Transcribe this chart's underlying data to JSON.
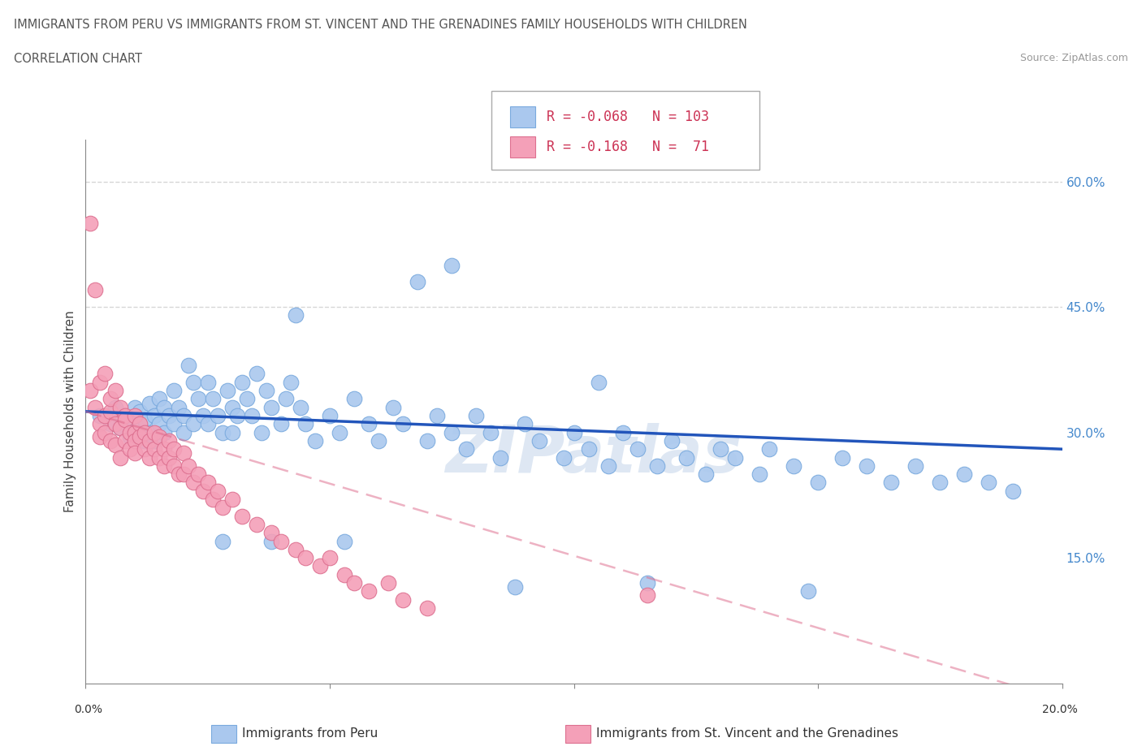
{
  "title_line1": "IMMIGRANTS FROM PERU VS IMMIGRANTS FROM ST. VINCENT AND THE GRENADINES FAMILY HOUSEHOLDS WITH CHILDREN",
  "title_line2": "CORRELATION CHART",
  "source": "Source: ZipAtlas.com",
  "ylabel": "Family Households with Children",
  "xlim": [
    0.0,
    20.0
  ],
  "ylim": [
    0.0,
    65.0
  ],
  "yticks_right": [
    15.0,
    30.0,
    45.0,
    60.0
  ],
  "ytick_labels_right": [
    "15.0%",
    "30.0%",
    "45.0%",
    "60.0%"
  ],
  "series_peru": {
    "color": "#aac8ee",
    "edge_color": "#7aaade",
    "label": "Immigrants from Peru",
    "R": -0.068,
    "N": 103,
    "trend_color": "#2255bb",
    "trend_style": "solid"
  },
  "series_stvincent": {
    "color": "#f4a0b8",
    "edge_color": "#dd7090",
    "label": "Immigrants from St. Vincent and the Grenadines",
    "R": -0.168,
    "N": 71,
    "trend_color": "#dd6688",
    "trend_style": "dashed"
  },
  "watermark": "ZIPatlas",
  "background_color": "#ffffff",
  "grid_color": "#cccccc",
  "peru_x": [
    0.3,
    0.5,
    0.6,
    0.7,
    0.8,
    0.9,
    1.0,
    1.0,
    1.1,
    1.1,
    1.2,
    1.2,
    1.3,
    1.3,
    1.4,
    1.4,
    1.5,
    1.5,
    1.6,
    1.6,
    1.7,
    1.8,
    1.8,
    1.9,
    2.0,
    2.0,
    2.1,
    2.2,
    2.2,
    2.3,
    2.4,
    2.5,
    2.5,
    2.6,
    2.7,
    2.8,
    2.9,
    3.0,
    3.0,
    3.1,
    3.2,
    3.3,
    3.4,
    3.5,
    3.6,
    3.7,
    3.8,
    4.0,
    4.1,
    4.2,
    4.4,
    4.5,
    4.7,
    5.0,
    5.2,
    5.5,
    5.8,
    6.0,
    6.3,
    6.5,
    7.0,
    7.2,
    7.5,
    7.8,
    8.0,
    8.3,
    8.5,
    9.0,
    9.3,
    9.8,
    10.0,
    10.3,
    10.7,
    11.0,
    11.3,
    11.7,
    12.0,
    12.3,
    12.7,
    13.0,
    13.3,
    13.8,
    14.0,
    14.5,
    15.0,
    15.5,
    16.0,
    16.5,
    17.0,
    17.5,
    18.0,
    18.5,
    19.0,
    7.5,
    10.5,
    6.8,
    4.3,
    3.8,
    2.8,
    5.3,
    8.8,
    11.5,
    14.8
  ],
  "peru_y": [
    32.0,
    31.0,
    33.0,
    30.5,
    32.0,
    29.5,
    31.0,
    33.0,
    30.0,
    32.5,
    29.0,
    31.5,
    33.5,
    30.0,
    32.0,
    29.0,
    34.0,
    31.0,
    33.0,
    30.0,
    32.0,
    35.0,
    31.0,
    33.0,
    30.0,
    32.0,
    38.0,
    36.0,
    31.0,
    34.0,
    32.0,
    36.0,
    31.0,
    34.0,
    32.0,
    30.0,
    35.0,
    33.0,
    30.0,
    32.0,
    36.0,
    34.0,
    32.0,
    37.0,
    30.0,
    35.0,
    33.0,
    31.0,
    34.0,
    36.0,
    33.0,
    31.0,
    29.0,
    32.0,
    30.0,
    34.0,
    31.0,
    29.0,
    33.0,
    31.0,
    29.0,
    32.0,
    30.0,
    28.0,
    32.0,
    30.0,
    27.0,
    31.0,
    29.0,
    27.0,
    30.0,
    28.0,
    26.0,
    30.0,
    28.0,
    26.0,
    29.0,
    27.0,
    25.0,
    28.0,
    27.0,
    25.0,
    28.0,
    26.0,
    24.0,
    27.0,
    26.0,
    24.0,
    26.0,
    24.0,
    25.0,
    24.0,
    23.0,
    50.0,
    36.0,
    48.0,
    44.0,
    17.0,
    17.0,
    17.0,
    11.5,
    12.0,
    11.0
  ],
  "stvincent_x": [
    0.1,
    0.1,
    0.2,
    0.2,
    0.3,
    0.3,
    0.3,
    0.4,
    0.4,
    0.4,
    0.5,
    0.5,
    0.5,
    0.6,
    0.6,
    0.6,
    0.7,
    0.7,
    0.7,
    0.8,
    0.8,
    0.8,
    0.9,
    0.9,
    1.0,
    1.0,
    1.0,
    1.0,
    1.1,
    1.1,
    1.2,
    1.2,
    1.3,
    1.3,
    1.4,
    1.4,
    1.5,
    1.5,
    1.6,
    1.6,
    1.7,
    1.7,
    1.8,
    1.8,
    1.9,
    2.0,
    2.0,
    2.1,
    2.2,
    2.3,
    2.4,
    2.5,
    2.6,
    2.7,
    2.8,
    3.0,
    3.2,
    3.5,
    3.8,
    4.0,
    4.3,
    4.5,
    4.8,
    5.0,
    5.3,
    5.5,
    5.8,
    6.2,
    6.5,
    7.0,
    11.5
  ],
  "stvincent_y": [
    55.0,
    35.0,
    33.0,
    47.0,
    31.0,
    36.0,
    29.5,
    32.0,
    30.0,
    37.0,
    32.5,
    29.0,
    34.0,
    31.0,
    28.5,
    35.0,
    30.5,
    33.0,
    27.0,
    32.0,
    29.0,
    31.5,
    30.0,
    28.0,
    32.0,
    30.0,
    29.0,
    27.5,
    31.0,
    29.5,
    30.0,
    28.0,
    27.0,
    29.0,
    28.0,
    30.0,
    29.5,
    27.0,
    28.0,
    26.0,
    27.0,
    29.0,
    26.0,
    28.0,
    25.0,
    27.5,
    25.0,
    26.0,
    24.0,
    25.0,
    23.0,
    24.0,
    22.0,
    23.0,
    21.0,
    22.0,
    20.0,
    19.0,
    18.0,
    17.0,
    16.0,
    15.0,
    14.0,
    15.0,
    13.0,
    12.0,
    11.0,
    12.0,
    10.0,
    9.0,
    10.5
  ]
}
